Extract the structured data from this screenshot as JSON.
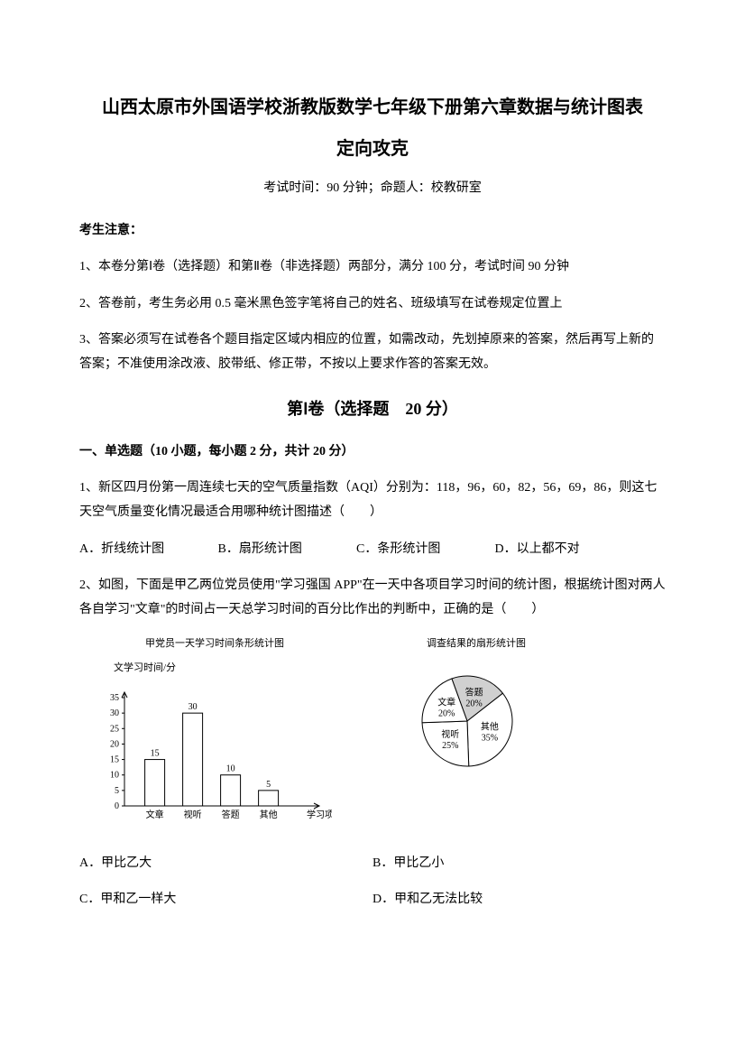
{
  "title": {
    "line1": "山西太原市外国语学校浙教版数学七年级下册第六章数据与统计图表",
    "line2": "定向攻克"
  },
  "exam_info": "考试时间：90 分钟；命题人：校教研室",
  "notice": {
    "head": "考生注意：",
    "items": [
      "1、本卷分第Ⅰ卷（选择题）和第Ⅱ卷（非选择题）两部分，满分 100 分，考试时间 90 分钟",
      "2、答卷前，考生务必用 0.5 毫米黑色签字笔将自己的姓名、班级填写在试卷规定位置上",
      "3、答案必须写在试卷各个题目指定区域内相应的位置，如需改动，先划掉原来的答案，然后再写上新的答案；不准使用涂改液、胶带纸、修正带，不按以上要求作答的答案无效。"
    ]
  },
  "section1": "第Ⅰ卷（选择题　20 分）",
  "part1": "一、单选题（10 小题，每小题 2 分，共计 20 分）",
  "q1": {
    "text": "1、新区四月份第一周连续七天的空气质量指数（AQI）分别为：118，96，60，82，56，69，86，则这七天空气质量变化情况最适合用哪种统计图描述（　　）",
    "a": "A．折线统计图",
    "b": "B．扇形统计图",
    "c": "C．条形统计图",
    "d": "D．以上都不对"
  },
  "q2": {
    "text": "2、如图，下面是甲乙两位党员使用\"学习强国 APP\"在一天中各项目学习时间的统计图，根据统计图对两人各自学习\"文章\"的时间占一天总学习时间的百分比作出的判断中，正确的是（　　）",
    "a": "A．甲比乙大",
    "b": "B．甲比乙小",
    "c": "C．甲和乙一样大",
    "d": "D．甲和乙无法比较"
  },
  "bar_chart": {
    "title": "甲党员一天学习时间条形统计图",
    "ylabel": "文学习时间/分",
    "xlabel": "学习项目",
    "categories": [
      "文章",
      "视听",
      "答题",
      "其他"
    ],
    "values": [
      15,
      30,
      10,
      5
    ],
    "value_labels": [
      "15",
      "30",
      "10",
      "5"
    ],
    "yticks": [
      0,
      5,
      10,
      15,
      20,
      25,
      30,
      35
    ],
    "ylim": [
      0,
      35
    ],
    "bar_fill": "#ffffff",
    "bar_stroke": "#000000",
    "axis_color": "#000000",
    "font_size": 10
  },
  "pie_chart": {
    "title": "调查结果的扇形统计图",
    "slices": [
      {
        "label": "文章",
        "pct": "20%",
        "value": 20,
        "fill": "#ffffff"
      },
      {
        "label": "视听",
        "pct": "25%",
        "value": 25,
        "fill": "#ffffff"
      },
      {
        "label": "答题",
        "pct": "20%",
        "value": 20,
        "fill": "#d0d0d0"
      },
      {
        "label": "其他",
        "pct": "35%",
        "value": 35,
        "fill": "#ffffff"
      }
    ],
    "stroke": "#000000",
    "radius": 50,
    "font_size": 10
  }
}
